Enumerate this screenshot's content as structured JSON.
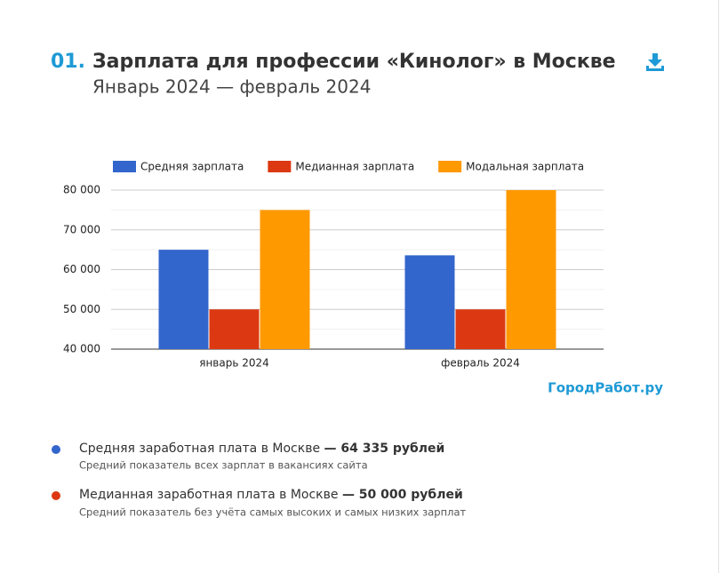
{
  "header": {
    "number": "01.",
    "title": "Зарплата для профессии «Кинолог» в Москве",
    "subtitle": "Январь 2024 — февраль 2024"
  },
  "chart_data": {
    "type": "bar",
    "categories": [
      "январь 2024",
      "февраль 2024"
    ],
    "series": [
      {
        "name": "Средняя зарплата",
        "color": "#3366cc",
        "values": [
          65000,
          63600
        ]
      },
      {
        "name": "Медианная зарплата",
        "color": "#dc3912",
        "values": [
          50000,
          50000
        ]
      },
      {
        "name": "Модальная зарплата",
        "color": "#ff9900",
        "values": [
          75000,
          80000
        ]
      }
    ],
    "ylim": [
      40000,
      80000
    ],
    "yticks": [
      {
        "value": 40000,
        "label": "40 000"
      },
      {
        "value": 50000,
        "label": "50 000"
      },
      {
        "value": 60000,
        "label": "60 000"
      },
      {
        "value": 70000,
        "label": "70 000"
      },
      {
        "value": 80000,
        "label": "80 000"
      }
    ],
    "y_minor_ticks": [
      45000,
      55000,
      65000,
      75000
    ],
    "grid": true,
    "legend": "top"
  },
  "brand": "ГородРабот.ру",
  "summary": [
    {
      "label": "Средняя заработная плата в Москве",
      "value": "— 64 335 рублей",
      "note": "Средний показатель всех зарплат в вакансиях сайта"
    },
    {
      "label": "Медианная заработная плата в Москве",
      "value": "— 50 000 рублей",
      "note": "Средний показатель без учёта самых высоких и самых низких зарплат"
    }
  ]
}
